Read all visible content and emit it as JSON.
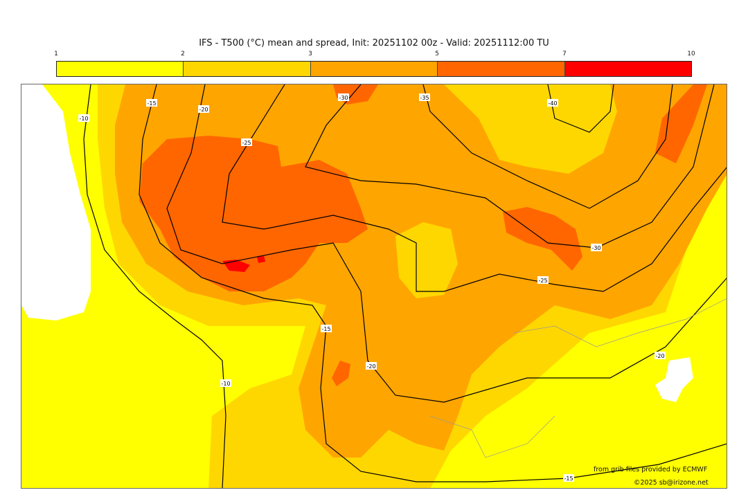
{
  "title": "IFS - T500 (°C) mean and spread, Init: 20251102 00z - Valid: 20251112:00 TU",
  "colorbar": {
    "ticks": [
      "1",
      "2",
      "3",
      "5",
      "7",
      "10"
    ],
    "colors": [
      "#ffff00",
      "#ffd700",
      "#ffa500",
      "#ff6600",
      "#ff0000"
    ]
  },
  "contour_labels": [
    "-10",
    "-15",
    "-20",
    "-25",
    "-30",
    "-35",
    "-40",
    "-30",
    "-25",
    "-15",
    "-20",
    "-10",
    "-15",
    "-20"
  ],
  "credits": {
    "source": "from grib files provided by ECMWF",
    "copyright": "©2025 sb@irizone.net"
  }
}
